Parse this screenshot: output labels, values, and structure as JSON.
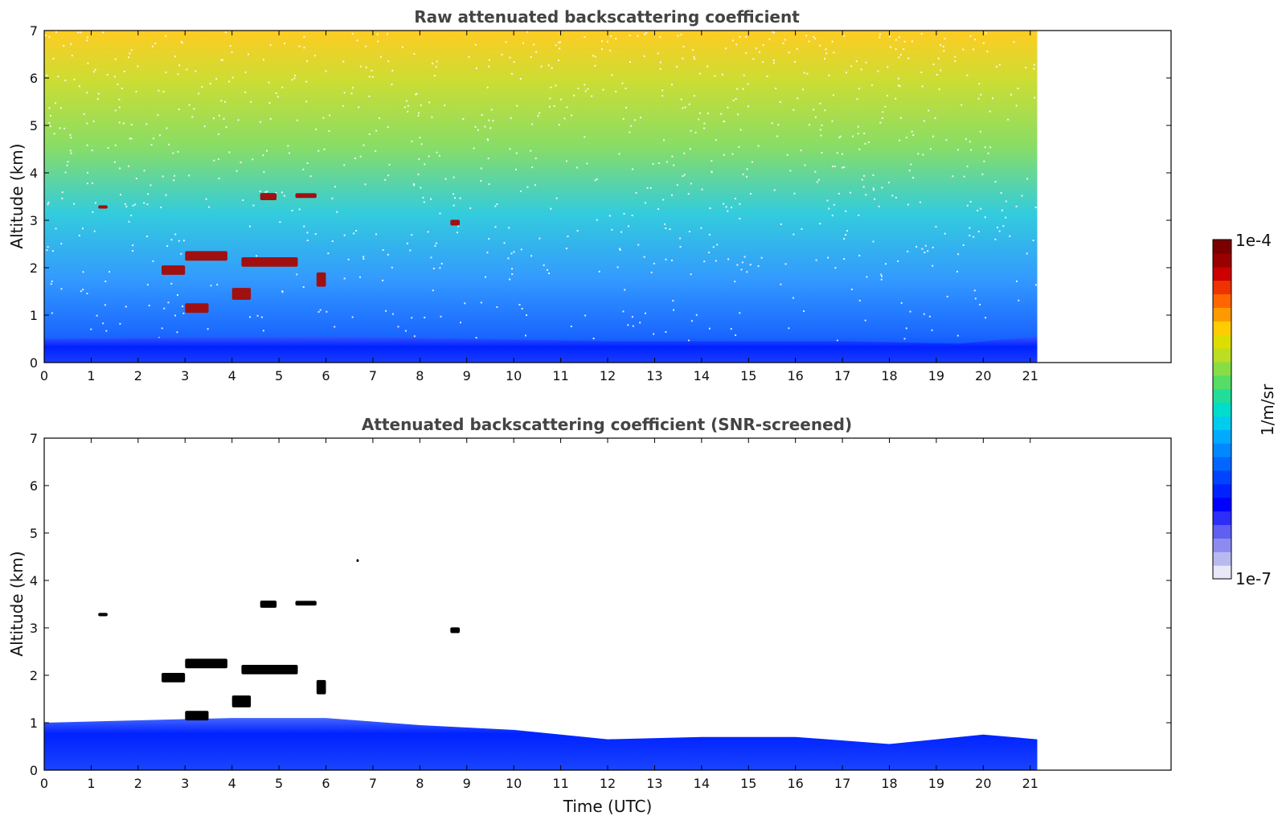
{
  "figure": {
    "colorbar": {
      "max_label": "1e-4",
      "min_label": "1e-7",
      "unit_label": "1/m/sr",
      "colors": [
        "#e8e8f8",
        "#b9b9f2",
        "#8c8cf0",
        "#5f5ff3",
        "#2d2df8",
        "#0000ff",
        "#0022ff",
        "#0044ff",
        "#0066ff",
        "#0088ff",
        "#00aaff",
        "#00ccee",
        "#00ddcc",
        "#22dd99",
        "#55dd66",
        "#88dd44",
        "#bbdd22",
        "#dddd00",
        "#ffcc00",
        "#ff9900",
        "#ff6600",
        "#ee3300",
        "#cc0000",
        "#990000",
        "#7a0000"
      ]
    }
  },
  "chart_data": [
    {
      "type": "heatmap",
      "title": "Raw attenuated backscattering coefficient",
      "xlabel": "",
      "ylabel": "Altitude (km)",
      "xlim": [
        0,
        24
      ],
      "ylim": [
        0,
        7
      ],
      "x_ticks": [
        0,
        1,
        2,
        3,
        4,
        5,
        6,
        7,
        8,
        9,
        10,
        11,
        12,
        13,
        14,
        15,
        16,
        17,
        18,
        19,
        20,
        21
      ],
      "y_ticks": [
        0,
        1,
        2,
        3,
        4,
        5,
        6,
        7
      ],
      "data_end_time": 21.15,
      "colorscale": "log10 1e-7 to 1e-4 (1/m/sr)",
      "noise": true,
      "boundary_layer": [
        [
          0,
          0.5
        ],
        [
          6,
          0.55
        ],
        [
          12,
          0.45
        ],
        [
          17,
          0.45
        ],
        [
          19.5,
          0.4
        ],
        [
          21.15,
          0.55
        ]
      ],
      "cloud_layers": [
        {
          "t_start": 1.15,
          "t_end": 1.35,
          "alt": 3.28,
          "thickness": 0.07,
          "level": "high"
        },
        {
          "t_start": 4.6,
          "t_end": 4.95,
          "alt": 3.5,
          "thickness": 0.15,
          "level": "high"
        },
        {
          "t_start": 5.35,
          "t_end": 5.8,
          "alt": 3.52,
          "thickness": 0.1,
          "level": "high"
        },
        {
          "t_start": 8.65,
          "t_end": 8.85,
          "alt": 2.95,
          "thickness": 0.12,
          "level": "high"
        },
        {
          "t_start": 2.5,
          "t_end": 3.0,
          "alt": 1.95,
          "thickness": 0.2,
          "level": "high"
        },
        {
          "t_start": 3.0,
          "t_end": 3.9,
          "alt": 2.25,
          "thickness": 0.2,
          "level": "high"
        },
        {
          "t_start": 4.2,
          "t_end": 5.4,
          "alt": 2.12,
          "thickness": 0.2,
          "level": "high"
        },
        {
          "t_start": 4.0,
          "t_end": 4.4,
          "alt": 1.45,
          "thickness": 0.25,
          "level": "high"
        },
        {
          "t_start": 5.8,
          "t_end": 6.0,
          "alt": 1.75,
          "thickness": 0.3,
          "level": "high"
        },
        {
          "t_start": 3.0,
          "t_end": 3.5,
          "alt": 1.15,
          "thickness": 0.2,
          "level": "high"
        }
      ]
    },
    {
      "type": "heatmap",
      "title": "Attenuated backscattering coefficient (SNR-screened)",
      "xlabel": "Time (UTC)",
      "ylabel": "Altitude (km)",
      "xlim": [
        0,
        24
      ],
      "ylim": [
        0,
        7
      ],
      "x_ticks": [
        0,
        1,
        2,
        3,
        4,
        5,
        6,
        7,
        8,
        9,
        10,
        11,
        12,
        13,
        14,
        15,
        16,
        17,
        18,
        19,
        20,
        21
      ],
      "y_ticks": [
        0,
        1,
        2,
        3,
        4,
        5,
        6,
        7
      ],
      "data_end_time": 21.15,
      "colorscale": "log10 1e-7 to 1e-4 (1/m/sr)",
      "noise": false,
      "boundary_layer": [
        [
          0,
          1.0
        ],
        [
          2,
          1.05
        ],
        [
          4,
          1.1
        ],
        [
          6,
          1.1
        ],
        [
          8,
          0.95
        ],
        [
          10,
          0.85
        ],
        [
          12,
          0.65
        ],
        [
          14,
          0.7
        ],
        [
          16,
          0.7
        ],
        [
          18,
          0.55
        ],
        [
          20,
          0.75
        ],
        [
          21.15,
          0.65
        ]
      ],
      "cloud_layers": [
        {
          "t_start": 1.15,
          "t_end": 1.35,
          "alt": 3.28,
          "thickness": 0.07,
          "level": "black"
        },
        {
          "t_start": 4.6,
          "t_end": 4.95,
          "alt": 3.5,
          "thickness": 0.15,
          "level": "black"
        },
        {
          "t_start": 5.35,
          "t_end": 5.8,
          "alt": 3.52,
          "thickness": 0.1,
          "level": "black"
        },
        {
          "t_start": 8.65,
          "t_end": 8.85,
          "alt": 2.95,
          "thickness": 0.12,
          "level": "black"
        },
        {
          "t_start": 2.5,
          "t_end": 3.0,
          "alt": 1.95,
          "thickness": 0.2,
          "level": "black"
        },
        {
          "t_start": 3.0,
          "t_end": 3.9,
          "alt": 2.25,
          "thickness": 0.2,
          "level": "black"
        },
        {
          "t_start": 4.2,
          "t_end": 5.4,
          "alt": 2.12,
          "thickness": 0.2,
          "level": "black"
        },
        {
          "t_start": 4.0,
          "t_end": 4.4,
          "alt": 1.45,
          "thickness": 0.25,
          "level": "black"
        },
        {
          "t_start": 5.8,
          "t_end": 6.0,
          "alt": 1.75,
          "thickness": 0.3,
          "level": "black"
        },
        {
          "t_start": 3.0,
          "t_end": 3.5,
          "alt": 1.15,
          "thickness": 0.2,
          "level": "black"
        },
        {
          "t_start": 6.65,
          "t_end": 6.7,
          "alt": 4.42,
          "thickness": 0.06,
          "level": "black"
        }
      ]
    }
  ]
}
